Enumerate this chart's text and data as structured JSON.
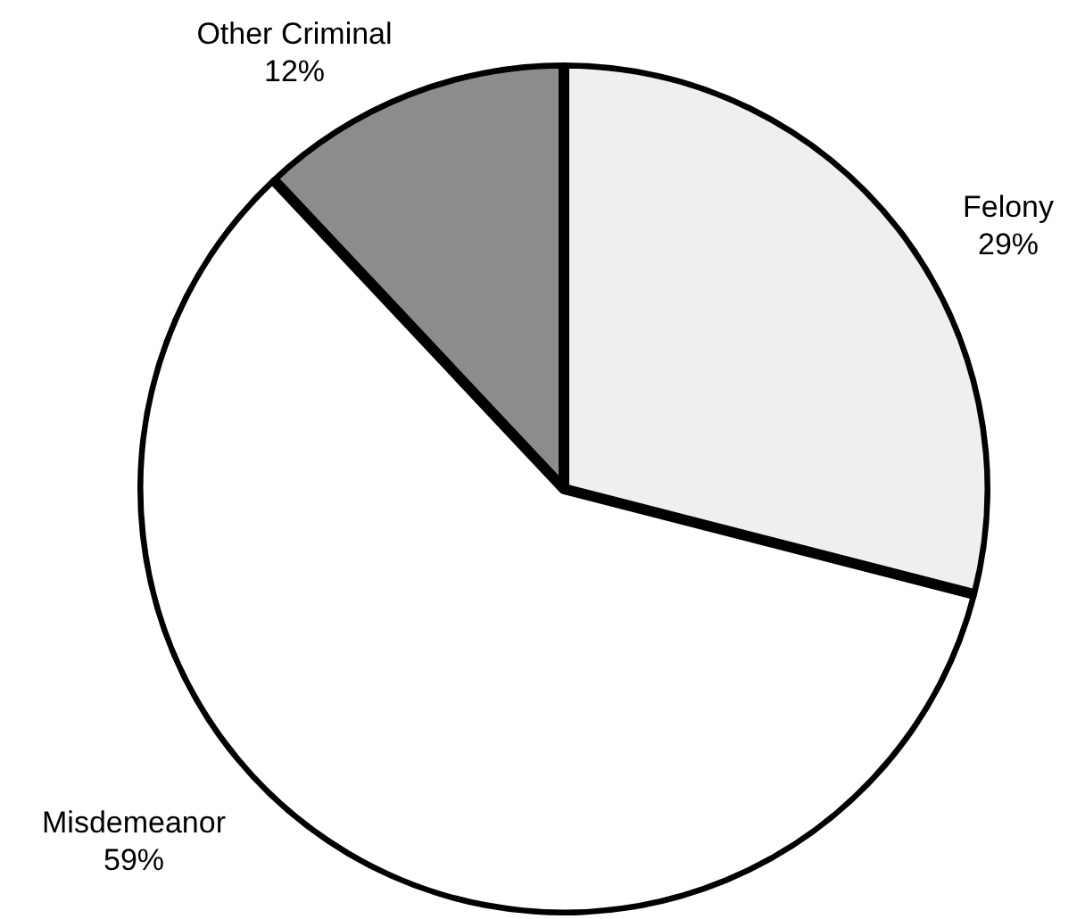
{
  "chart_data": {
    "type": "pie",
    "categories": [
      "Felony",
      "Misdemeanor",
      "Other Criminal"
    ],
    "values": [
      29,
      59,
      12
    ],
    "colors": [
      "#efefef",
      "#ffffff",
      "#8c8c8c"
    ],
    "value_labels": [
      "29%",
      "59%",
      "12%"
    ],
    "legend": false
  }
}
